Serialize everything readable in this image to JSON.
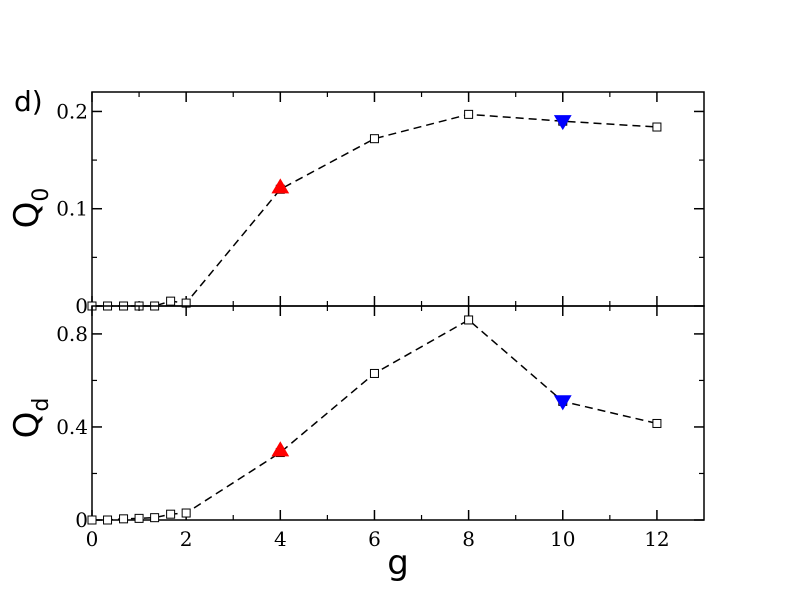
{
  "panel_label": "d)",
  "chart_data": [
    {
      "type": "line",
      "title": "",
      "xlabel": "g",
      "ylabel": "Q",
      "ylabel_sub": "0",
      "xlim": [
        0,
        13
      ],
      "ylim": [
        0,
        0.22
      ],
      "y_ticks": [
        0,
        0.1,
        0.2
      ],
      "y_tick_labels": [
        "0",
        "0.1",
        "0.2"
      ],
      "y_minor_ticks": [
        0.05,
        0.15
      ],
      "grid": false,
      "series": [
        {
          "style": "dashed-line-open-squares",
          "x": [
            0,
            0.33,
            0.67,
            1.0,
            1.33,
            1.67,
            2.0,
            4,
            6,
            8,
            10,
            12
          ],
          "y": [
            0.0,
            0.0,
            0.0,
            0.0,
            0.0,
            0.005,
            0.003,
            0.12,
            0.172,
            0.197,
            0.19,
            0.184
          ]
        }
      ],
      "highlights": [
        {
          "shape": "triangle-up",
          "color": "#ff0000",
          "x": 4,
          "y": 0.122
        },
        {
          "shape": "triangle-down",
          "color": "#0000ff",
          "x": 10,
          "y": 0.19
        }
      ]
    },
    {
      "type": "line",
      "title": "",
      "xlabel": "g",
      "ylabel": "Q",
      "ylabel_sub": "d",
      "xlim": [
        0,
        13
      ],
      "ylim": [
        0,
        0.92
      ],
      "y_ticks": [
        0,
        0.4,
        0.8
      ],
      "y_tick_labels": [
        "0",
        "0.4",
        "0.8"
      ],
      "y_minor_ticks": [
        0.2,
        0.6
      ],
      "x_ticks": [
        0,
        2,
        4,
        6,
        8,
        10,
        12
      ],
      "x_tick_labels": [
        "0",
        "2",
        "4",
        "6",
        "8",
        "10",
        "12"
      ],
      "grid": false,
      "series": [
        {
          "style": "dashed-line-open-squares",
          "x": [
            0,
            0.33,
            0.67,
            1.0,
            1.33,
            1.67,
            2.0,
            4,
            6,
            8,
            10,
            12
          ],
          "y": [
            0.0,
            0.0,
            0.005,
            0.007,
            0.01,
            0.025,
            0.03,
            0.29,
            0.63,
            0.86,
            0.51,
            0.415
          ]
        }
      ],
      "highlights": [
        {
          "shape": "triangle-up",
          "color": "#ff0000",
          "x": 4,
          "y": 0.3
        },
        {
          "shape": "triangle-down",
          "color": "#0000ff",
          "x": 10,
          "y": 0.51
        }
      ]
    }
  ]
}
